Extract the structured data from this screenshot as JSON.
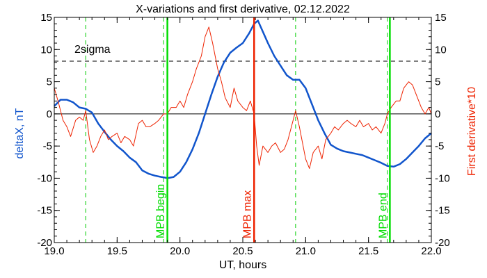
{
  "chart_data": {
    "type": "line",
    "title": "X-variations and first derivative, 02.12.2022",
    "xlabel": "UT, hours",
    "ylabel_left": "deltaX, nT",
    "ylabel_right": "First derivative*10",
    "xlim": [
      19.0,
      22.0
    ],
    "ylim": [
      -20,
      15
    ],
    "xticks": [
      19.0,
      19.5,
      20.0,
      20.5,
      21.0,
      21.5,
      22.0
    ],
    "xtick_labels": [
      "19.0",
      "19.5",
      "20.0",
      "20.5",
      "21.0",
      "21.5",
      "22.0"
    ],
    "yticks": [
      -20,
      -15,
      -10,
      -5,
      0,
      5,
      10,
      15
    ],
    "ytick_labels": [
      "-20",
      "-15",
      "-10",
      "-5",
      "0",
      "5",
      "10",
      "15"
    ],
    "grid": false,
    "annotations": {
      "two_sigma_label": "2sigma",
      "two_sigma_level": 8.2,
      "zero_line": 0
    },
    "markers": [
      {
        "label": "MPB begin",
        "x": 19.9,
        "color": "#00dd00"
      },
      {
        "label": "MPB max",
        "x": 20.59,
        "color": "#ee2200"
      },
      {
        "label": "MPB end",
        "x": 21.67,
        "color": "#00dd00"
      }
    ],
    "dashed_markers": [
      19.25,
      19.87,
      20.92,
      21.65
    ],
    "series": [
      {
        "color": "#1155cc",
        "x": [
          19.0,
          19.05,
          19.1,
          19.15,
          19.2,
          19.25,
          19.3,
          19.35,
          19.4,
          19.45,
          19.5,
          19.55,
          19.6,
          19.65,
          19.7,
          19.75,
          19.8,
          19.85,
          19.88,
          19.9,
          19.95,
          20.0,
          20.05,
          20.1,
          20.15,
          20.2,
          20.25,
          20.3,
          20.35,
          20.4,
          20.45,
          20.5,
          20.55,
          20.59,
          20.62,
          20.65,
          20.7,
          20.75,
          20.8,
          20.85,
          20.9,
          20.95,
          21.0,
          21.05,
          21.1,
          21.15,
          21.2,
          21.25,
          21.3,
          21.35,
          21.4,
          21.45,
          21.5,
          21.55,
          21.6,
          21.65,
          21.7,
          21.75,
          21.8,
          21.85,
          21.9,
          21.95,
          22.0
        ],
        "values": [
          1.2,
          2.2,
          2.2,
          1.8,
          1.0,
          0.8,
          0.2,
          -1.5,
          -2.8,
          -4.0,
          -5.0,
          -5.8,
          -6.8,
          -7.5,
          -8.8,
          -9.3,
          -9.6,
          -9.8,
          -9.9,
          -10.0,
          -9.8,
          -9.0,
          -7.5,
          -5.5,
          -3.0,
          0.0,
          3.0,
          5.8,
          8.0,
          9.5,
          10.3,
          11.0,
          12.5,
          14.0,
          14.5,
          13.2,
          11.0,
          9.0,
          7.5,
          6.0,
          5.3,
          5.3,
          4.0,
          1.5,
          -1.0,
          -3.0,
          -4.8,
          -5.4,
          -5.8,
          -6.0,
          -6.2,
          -6.4,
          -6.8,
          -7.2,
          -7.6,
          -8.1,
          -8.2,
          -7.8,
          -7.0,
          -6.0,
          -5.0,
          -3.8,
          -3.0
        ]
      },
      {
        "color": "#ee2200",
        "x": [
          19.0,
          19.03,
          19.07,
          19.1,
          19.13,
          19.17,
          19.2,
          19.23,
          19.25,
          19.28,
          19.31,
          19.34,
          19.37,
          19.4,
          19.43,
          19.46,
          19.5,
          19.53,
          19.56,
          19.6,
          19.63,
          19.67,
          19.7,
          19.73,
          19.76,
          19.8,
          19.83,
          19.87,
          19.9,
          19.93,
          19.97,
          20.0,
          20.03,
          20.06,
          20.1,
          20.13,
          20.17,
          20.2,
          20.23,
          20.26,
          20.3,
          20.33,
          20.36,
          20.4,
          20.43,
          20.46,
          20.5,
          20.53,
          20.56,
          20.59,
          20.61,
          20.63,
          20.66,
          20.7,
          20.73,
          20.76,
          20.8,
          20.83,
          20.86,
          20.9,
          20.92,
          20.95,
          20.98,
          21.0,
          21.03,
          21.06,
          21.1,
          21.13,
          21.16,
          21.2,
          21.23,
          21.26,
          21.3,
          21.33,
          21.36,
          21.4,
          21.43,
          21.46,
          21.5,
          21.53,
          21.56,
          21.6,
          21.63,
          21.65,
          21.68,
          21.72,
          21.75,
          21.78,
          21.82,
          21.85,
          21.88,
          21.92,
          21.95,
          21.98,
          22.0
        ],
        "values": [
          4.0,
          2.0,
          -1.0,
          -2.0,
          -3.5,
          -1.0,
          -0.5,
          -1.0,
          0.5,
          -4.0,
          -6.0,
          -5.0,
          -3.5,
          -2.5,
          -4.0,
          -3.5,
          -3.0,
          -4.5,
          -3.5,
          -4.0,
          -5.0,
          -1.5,
          -1.0,
          -2.0,
          -2.0,
          -1.5,
          -1.0,
          0.0,
          0.0,
          1.0,
          1.0,
          2.0,
          1.0,
          3.0,
          5.0,
          7.0,
          9.0,
          12.0,
          13.5,
          11.0,
          7.0,
          5.0,
          2.5,
          1.0,
          4.0,
          2.0,
          1.0,
          0.5,
          2.0,
          0.0,
          -5.0,
          -8.0,
          -5.0,
          -6.0,
          -5.0,
          -4.5,
          -6.0,
          -5.5,
          -4.0,
          -1.0,
          0.5,
          -2.0,
          -5.0,
          -7.0,
          -8.5,
          -6.0,
          -5.0,
          -7.0,
          -4.0,
          -3.0,
          -2.0,
          -2.5,
          -1.5,
          -1.0,
          -1.5,
          -2.0,
          -1.0,
          -2.0,
          -1.5,
          -2.5,
          -2.0,
          -3.0,
          -1.5,
          0.0,
          1.0,
          2.0,
          2.0,
          4.0,
          5.0,
          4.5,
          3.0,
          1.0,
          0.0,
          1.0,
          0.0
        ]
      }
    ]
  }
}
